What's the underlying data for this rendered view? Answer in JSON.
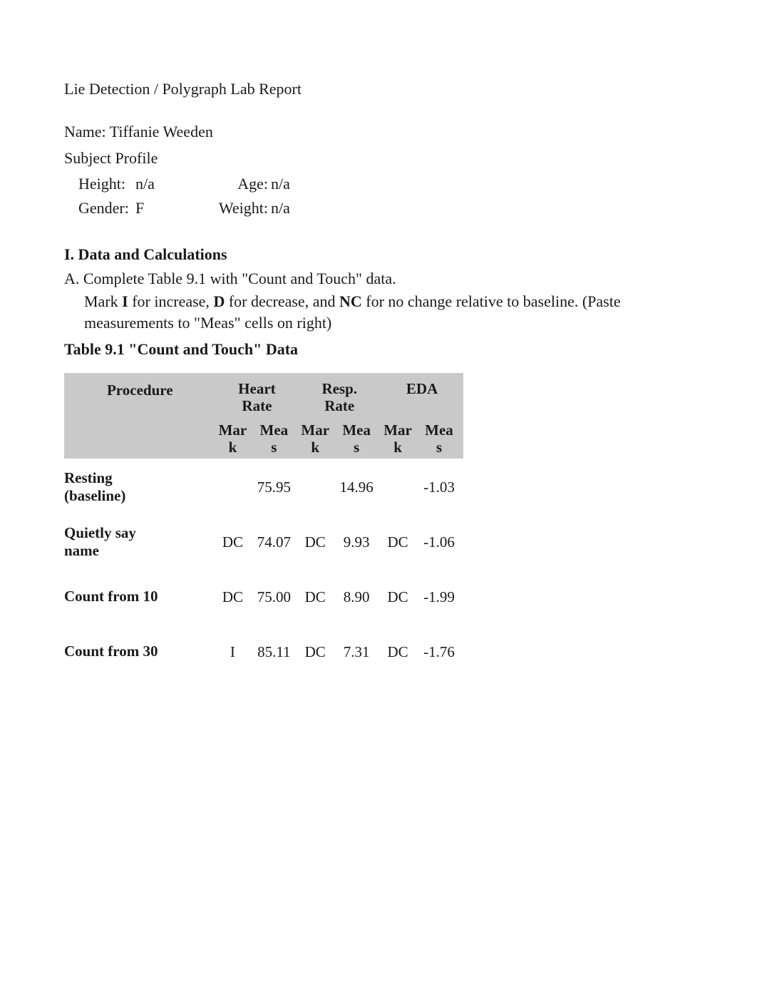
{
  "title": "Lie Detection / Polygraph Lab Report",
  "name_label": "Name:",
  "name_value": "Tiffanie Weeden",
  "subject_profile_label": "Subject Profile",
  "profile": {
    "height_label": "Height:",
    "height_value": "n/a",
    "age_label": "Age:",
    "age_value": "n/a",
    "gender_label": "Gender:",
    "gender_value": "F",
    "weight_label": "Weight:",
    "weight_value": "n/a"
  },
  "section_heading": "I. Data and Calculations",
  "instruction_a": "A. Complete Table 9.1 with \"Count and Touch\" data.",
  "instruction_indent_pre": "Mark ",
  "I_label": "I",
  "instruction_mid1": " for increase, ",
  "D_label": "D",
  "instruction_mid2": " for decrease, and ",
  "NC_label": "NC",
  "instruction_post": " for no change relative to baseline. (Paste measurements to \"Meas\" cells on right)",
  "table_caption": "Table 9.1 \"Count and Touch\" Data",
  "table": {
    "procedure_label": "Procedure",
    "hr_top": "Heart",
    "hr_bot": "Rate",
    "rr_top": "Resp.",
    "rr_bot": "Rate",
    "eda": "EDA",
    "mark_top": "Mar",
    "mark_bot": "k",
    "meas_top": "Mea",
    "meas_bot": "s",
    "header_bg": "#c9c9c9",
    "text_color": "#1a1a1a",
    "row_separator_color": "#ffffff",
    "rows": [
      {
        "label_l1": "Resting",
        "label_l2": "(baseline)",
        "hr_mark": "",
        "hr_meas": "75.95",
        "rr_mark": "",
        "rr_meas": "14.96",
        "eda_mark": "",
        "eda_meas": "-1.03"
      },
      {
        "label_l1": "Quietly say",
        "label_l2": "name",
        "hr_mark": "DC",
        "hr_meas": "74.07",
        "rr_mark": "DC",
        "rr_meas": "9.93",
        "eda_mark": "DC",
        "eda_meas": "-1.06"
      },
      {
        "label_l1": "Count from 10",
        "label_l2": "",
        "hr_mark": "DC",
        "hr_meas": "75.00",
        "rr_mark": "DC",
        "rr_meas": "8.90",
        "eda_mark": "DC",
        "eda_meas": "-1.99"
      },
      {
        "label_l1": "Count from 30",
        "label_l2": "",
        "hr_mark": "I",
        "hr_meas": "85.11",
        "rr_mark": "DC",
        "rr_meas": "7.31",
        "eda_mark": "DC",
        "eda_meas": "-1.76"
      }
    ]
  }
}
